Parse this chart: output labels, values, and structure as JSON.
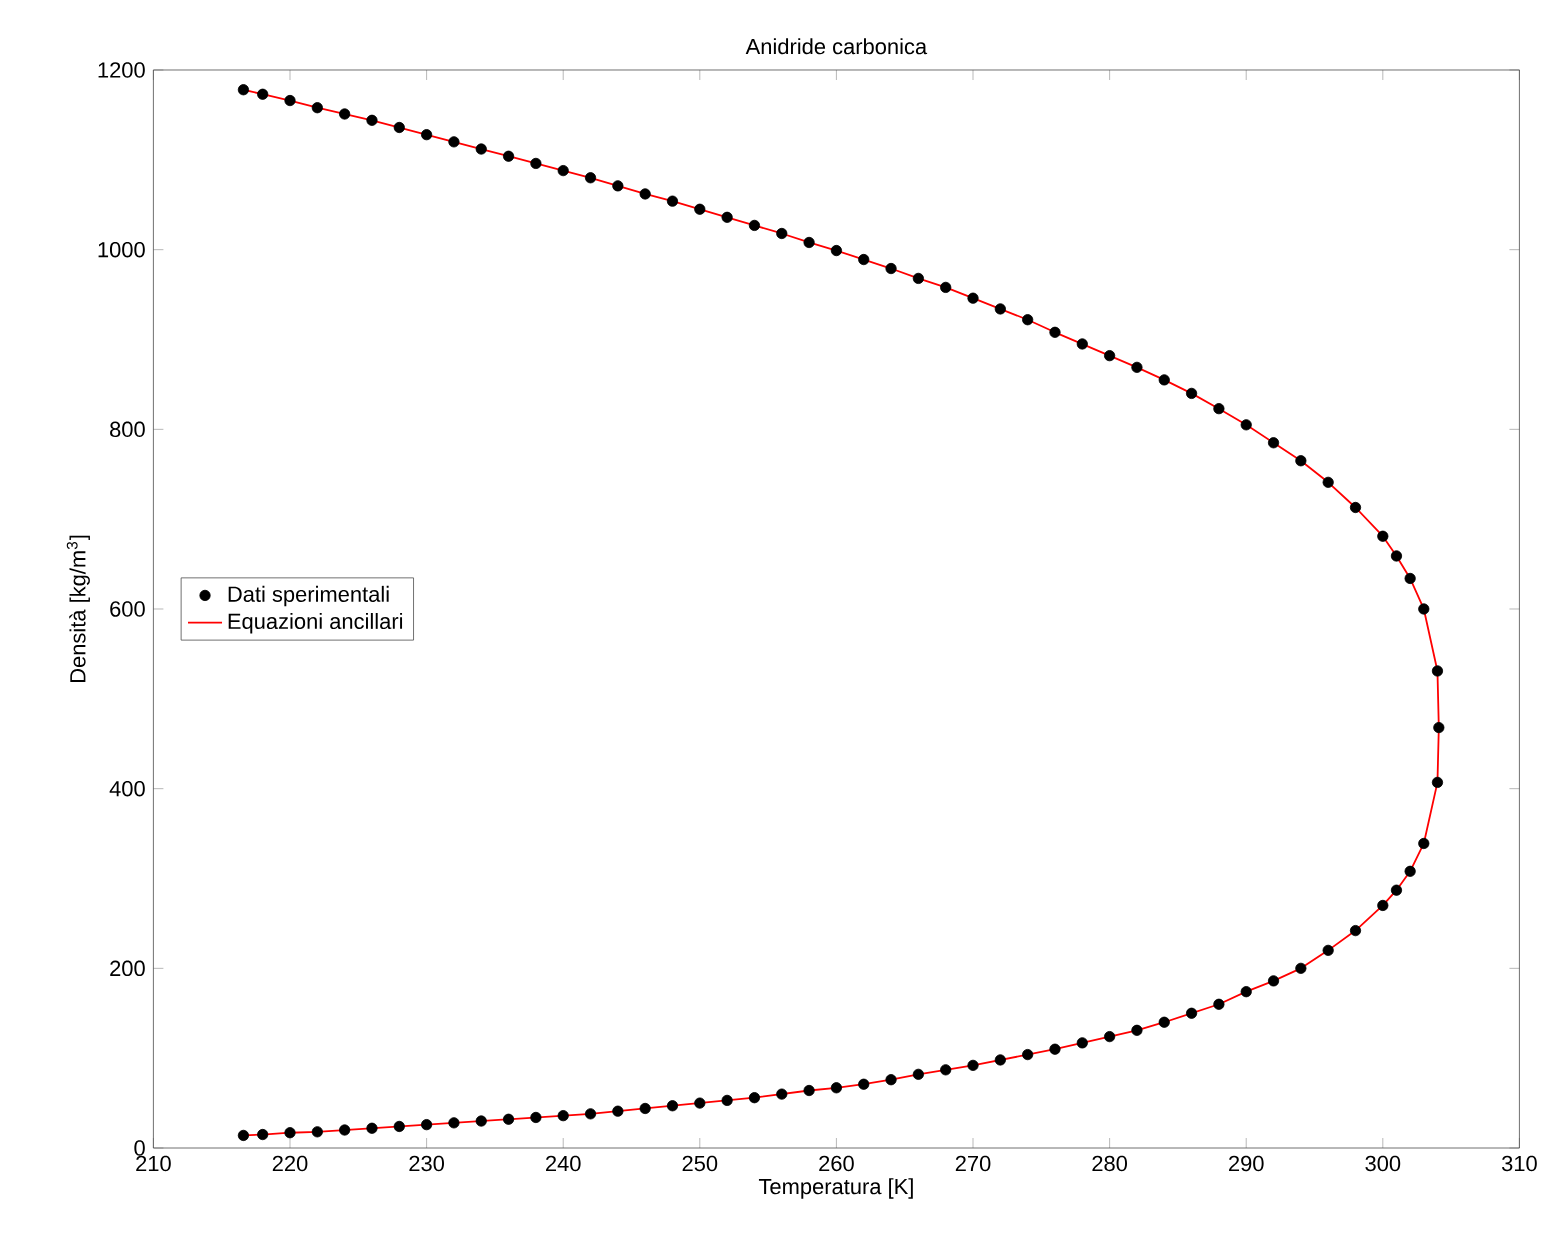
{
  "chart_data": {
    "type": "scatter",
    "title": "Anidride carbonica",
    "xlabel": "Temperatura [K]",
    "ylabel": "Densità [kg/m$^{3}$]",
    "xlim": [
      210,
      310
    ],
    "xticks": [
      210,
      220,
      230,
      240,
      250,
      260,
      270,
      280,
      290,
      300,
      310
    ],
    "ylim": [
      0,
      1200
    ],
    "yticks": [
      0,
      200,
      400,
      600,
      800,
      1000,
      1200
    ],
    "grid": false,
    "legend": "left",
    "series": [
      {
        "name": "Dati sperimentali",
        "type": "scatter",
        "color": "#000000",
        "marker": "circle",
        "x": [
          216.59,
          218,
          220,
          222,
          224,
          226,
          228,
          230,
          232,
          234,
          236,
          238,
          240,
          242,
          244,
          246,
          248,
          250,
          252,
          254,
          256,
          258,
          260,
          262,
          264,
          266,
          268,
          270,
          272,
          274,
          276,
          278,
          280,
          282,
          284,
          286,
          288,
          290,
          292,
          294,
          296,
          298,
          300,
          301,
          302,
          303,
          304,
          304.1,
          304,
          303,
          302,
          301,
          300,
          298,
          296,
          294,
          292,
          290,
          288,
          286,
          284,
          282,
          280,
          278,
          276,
          274,
          272,
          270,
          268,
          266,
          264,
          262,
          260,
          258,
          256,
          254,
          252,
          250,
          248,
          246,
          244,
          242,
          240,
          238,
          236,
          234,
          232,
          230,
          228,
          226,
          224,
          222,
          220,
          218,
          216.59
        ],
        "values": [
          1178,
          1173,
          1166,
          1158,
          1151,
          1144,
          1136,
          1128,
          1120,
          1112,
          1104,
          1096,
          1088,
          1080,
          1071,
          1062,
          1054,
          1045,
          1036,
          1027,
          1018,
          1008,
          999,
          989,
          979,
          968,
          958,
          946,
          934,
          922,
          908,
          895,
          882,
          869,
          855,
          840,
          823,
          805,
          785,
          765,
          741,
          713,
          681,
          659,
          634,
          600,
          531,
          468,
          407,
          339,
          308,
          287,
          270,
          242,
          220,
          200,
          186,
          174,
          160,
          150,
          140,
          131,
          124,
          117,
          110,
          104,
          98,
          92,
          87,
          82,
          76,
          71,
          67,
          64,
          60,
          56,
          53,
          50,
          47,
          44,
          41,
          38,
          36,
          34,
          32,
          30,
          28,
          26,
          24,
          22,
          20,
          18,
          17,
          15,
          14
        ]
      },
      {
        "name": "Equazioni ancillari",
        "type": "line",
        "color": "#ff0000",
        "marker": "none",
        "line_style": "solid",
        "x": [
          216.59,
          218,
          220,
          222,
          224,
          226,
          228,
          230,
          232,
          234,
          236,
          238,
          240,
          242,
          244,
          246,
          248,
          250,
          252,
          254,
          256,
          258,
          260,
          262,
          264,
          266,
          268,
          270,
          272,
          274,
          276,
          278,
          280,
          282,
          284,
          286,
          288,
          290,
          292,
          294,
          296,
          298,
          300,
          301,
          302,
          303,
          304,
          304.1,
          304,
          303,
          302,
          301,
          300,
          298,
          296,
          294,
          292,
          290,
          288,
          286,
          284,
          282,
          280,
          278,
          276,
          274,
          272,
          270,
          268,
          266,
          264,
          262,
          260,
          258,
          256,
          254,
          252,
          250,
          248,
          246,
          244,
          242,
          240,
          238,
          236,
          234,
          232,
          230,
          228,
          226,
          224,
          222,
          220,
          218,
          216.59
        ],
        "values": [
          1178,
          1173,
          1166,
          1158,
          1151,
          1144,
          1136,
          1128,
          1120,
          1112,
          1104,
          1096,
          1088,
          1080,
          1071,
          1062,
          1054,
          1045,
          1036,
          1027,
          1018,
          1008,
          999,
          989,
          979,
          968,
          958,
          946,
          934,
          922,
          908,
          895,
          882,
          869,
          855,
          840,
          823,
          805,
          785,
          765,
          741,
          713,
          681,
          659,
          634,
          600,
          531,
          468,
          407,
          339,
          308,
          287,
          270,
          242,
          220,
          200,
          186,
          174,
          160,
          150,
          140,
          131,
          124,
          117,
          110,
          104,
          98,
          92,
          87,
          82,
          76,
          71,
          67,
          64,
          60,
          56,
          53,
          50,
          47,
          44,
          41,
          38,
          36,
          34,
          32,
          30,
          28,
          26,
          24,
          22,
          20,
          18,
          17,
          15,
          14
        ]
      }
    ]
  }
}
